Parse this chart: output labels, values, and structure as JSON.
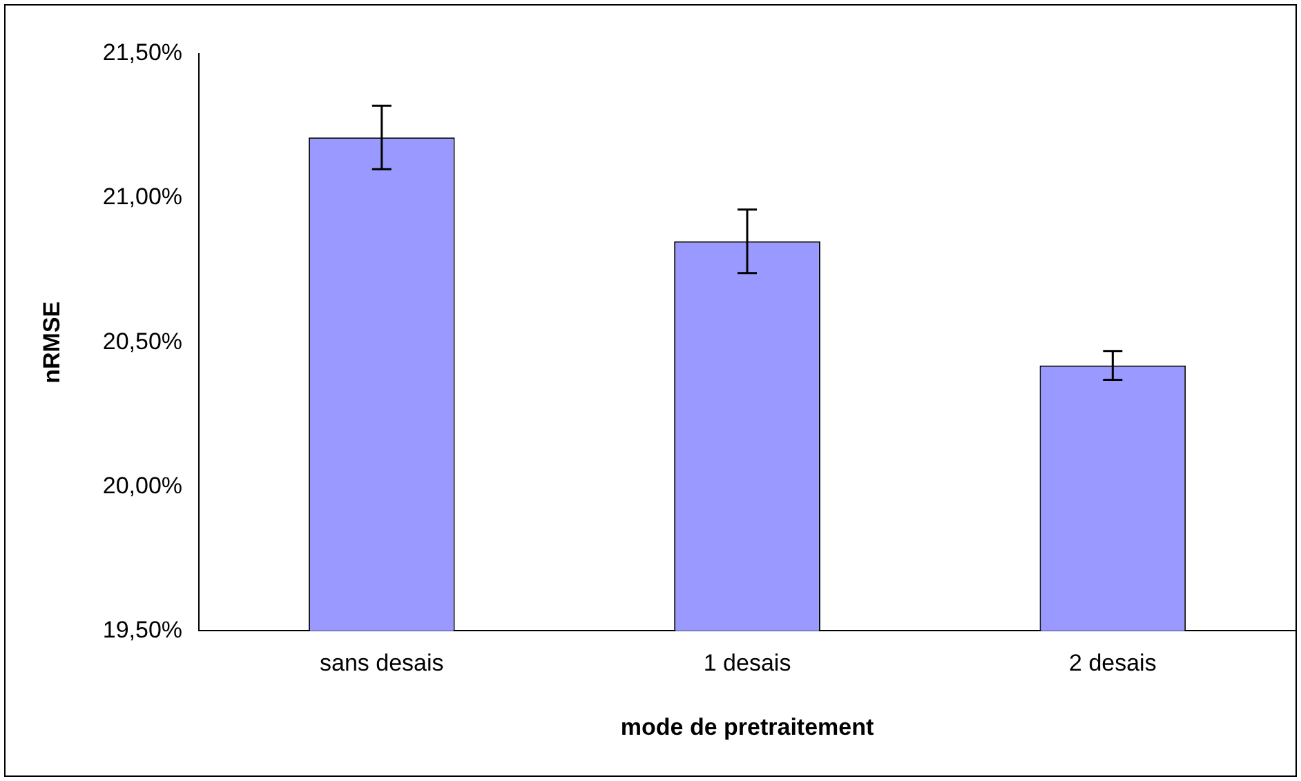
{
  "chart_data": {
    "type": "bar",
    "xlabel": "mode de pretraitement",
    "ylabel": "nRMSE",
    "categories": [
      "sans desais",
      "1 desais",
      "2 desais"
    ],
    "values": [
      21.21,
      20.85,
      20.42
    ],
    "errors": [
      0.11,
      0.11,
      0.05
    ],
    "color": "#9999ff",
    "ylim": [
      19.5,
      21.5
    ],
    "yticks": [
      {
        "value": 19.5,
        "label": "19,50%"
      },
      {
        "value": 20,
        "label": "20,00%"
      },
      {
        "value": 20.5,
        "label": "20,50%"
      },
      {
        "value": 21,
        "label": "21,00%"
      },
      {
        "value": 21.5,
        "label": "21,50%"
      }
    ],
    "grid": false,
    "legend": false
  }
}
